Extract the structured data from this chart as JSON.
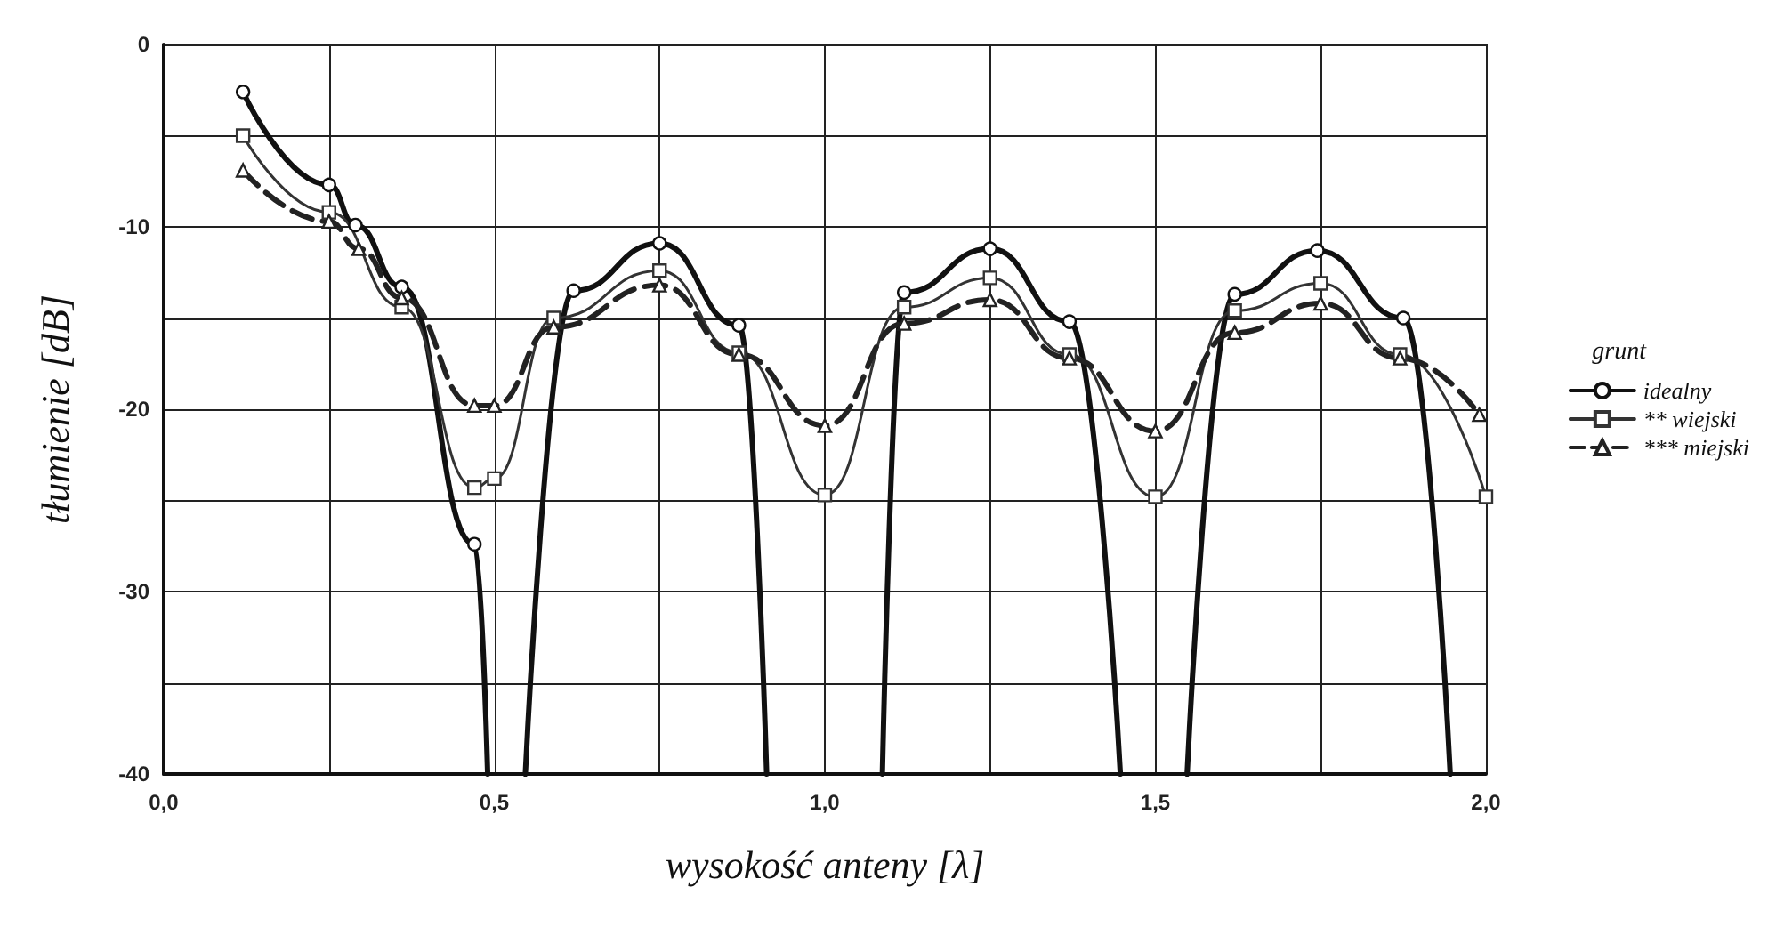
{
  "chart_data": {
    "type": "line",
    "xlabel": "wysokość anteny [λ]",
    "ylabel": "tłumienie [dB]",
    "legend_title": "grunt",
    "legend": "right",
    "grid": true,
    "xlim": [
      0,
      2
    ],
    "ylim": [
      -40,
      0
    ],
    "xticks": [
      {
        "value": 0,
        "label": "0,0"
      },
      {
        "value": 0.25,
        "label": null
      },
      {
        "value": 0.5,
        "label": "0,5"
      },
      {
        "value": 0.75,
        "label": null
      },
      {
        "value": 1,
        "label": "1,0"
      },
      {
        "value": 1.25,
        "label": null
      },
      {
        "value": 1.5,
        "label": "1,5"
      },
      {
        "value": 1.75,
        "label": null
      },
      {
        "value": 2,
        "label": "2,0"
      }
    ],
    "yticks": [
      -40,
      {
        "value": -35,
        "label": null
      },
      -30,
      {
        "value": -25,
        "label": null
      },
      -20,
      {
        "value": -15,
        "label": null
      },
      -10,
      {
        "value": -5,
        "label": null
      },
      0
    ],
    "series": [
      {
        "name": "idealny",
        "color": "#111111",
        "marker": "circle",
        "line_style": "solid",
        "x": [
          0.12,
          0.25,
          0.29,
          0.36,
          0.47,
          0.49,
          null,
          0.547,
          0.62,
          0.75,
          0.87,
          0.912,
          null,
          1.087,
          1.12,
          1.25,
          1.37,
          1.447,
          null,
          1.548,
          1.62,
          1.745,
          1.875,
          1.946
        ],
        "values": [
          -2.6,
          -7.7,
          -9.9,
          -13.3,
          -27.4,
          -40,
          null,
          -40,
          -13.5,
          -10.9,
          -15.4,
          -40,
          null,
          -40,
          -13.6,
          -11.2,
          -15.2,
          -40,
          null,
          -40,
          -13.7,
          -11.3,
          -15,
          -40
        ]
      },
      {
        "name": "** wiejski",
        "color": "#333333",
        "marker": "square",
        "line_style": "solid",
        "x": [
          0.12,
          0.25,
          0.36,
          0.47,
          0.5,
          0.59,
          0.75,
          0.87,
          1,
          1.12,
          1.25,
          1.37,
          1.5,
          1.62,
          1.75,
          1.87,
          2
        ],
        "values": [
          -5,
          -9.2,
          -14.4,
          -24.3,
          -23.8,
          -15,
          -12.4,
          -16.9,
          -24.7,
          -14.4,
          -12.8,
          -17,
          -24.8,
          -14.6,
          -13.1,
          -17,
          -24.8
        ]
      },
      {
        "name": "*** miejski",
        "color": "#222222",
        "marker": "triangle",
        "line_style": "dashed",
        "x": [
          0.12,
          0.25,
          0.295,
          0.36,
          0.47,
          0.5,
          0.59,
          0.75,
          0.87,
          1,
          1.12,
          1.25,
          1.37,
          1.5,
          1.62,
          1.75,
          1.87,
          1.99
        ],
        "values": [
          -6.9,
          -9.7,
          -11.2,
          -13.9,
          -19.8,
          -19.8,
          -15.5,
          -13.2,
          -17,
          -20.9,
          -15.3,
          -14,
          -17.2,
          -21.2,
          -15.8,
          -14.2,
          -17.2,
          -20.3
        ]
      }
    ]
  }
}
